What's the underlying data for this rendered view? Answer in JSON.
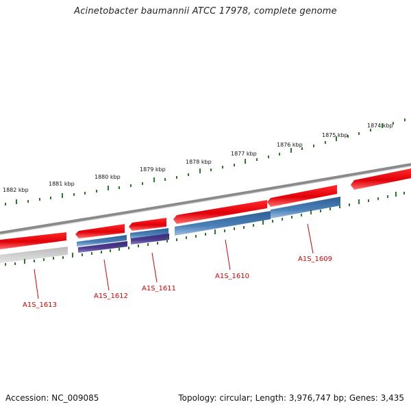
{
  "title": "Acinetobacter baumannii ATCC 17978, complete genome",
  "accession_label": "Accession: NC_009085",
  "summary_label": "Topology: circular; Length: 3,976,747 bp; Genes: 3,435",
  "colors": {
    "forward_cds": "#e8000b",
    "reverse_cds_blue": "#3b6ea5",
    "reverse_cds_purple": "#4b3a8a",
    "backbone": "#8a8a8a",
    "ticks": "#2a7a2a",
    "gene_label": "#d40000"
  },
  "ruler_labels": [
    "1882 kbp",
    "1881 kbp",
    "1880 kbp",
    "1879 kbp",
    "1878 kbp",
    "1877 kbp",
    "1876 kbp",
    "1875 kbp",
    "1874 kbp"
  ],
  "gene_labels": [
    "A1S_1613",
    "A1S_1612",
    "A1S_1611",
    "A1S_1610",
    "A1S_1609"
  ]
}
